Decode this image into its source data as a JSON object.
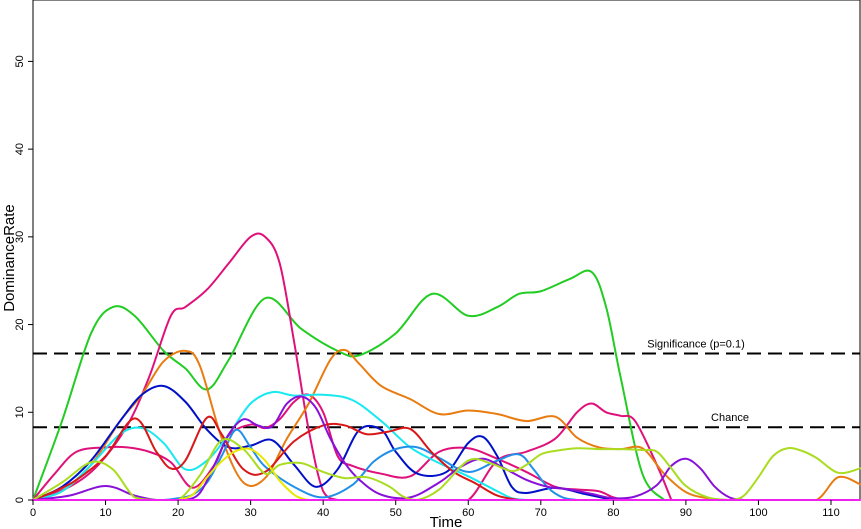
{
  "chart_data": {
    "type": "line",
    "title": "",
    "xlabel": "Time",
    "ylabel": "DominanceRate",
    "xlim": [
      0,
      114
    ],
    "ylim": [
      0,
      57
    ],
    "x_ticks": [
      0,
      10,
      20,
      30,
      40,
      50,
      60,
      70,
      80,
      90,
      100,
      110
    ],
    "y_ticks": [
      0,
      10,
      20,
      30,
      40,
      50
    ],
    "grid": false,
    "legend": "none",
    "reference_lines": [
      {
        "label": "Significance (p=0.1)",
        "y": 16.7,
        "style": "dashed"
      },
      {
        "label": "Chance",
        "y": 8.3,
        "style": "dashed"
      }
    ],
    "series": [
      {
        "color": "#22cc22",
        "x": [
          0,
          4,
          8,
          11,
          14,
          18,
          21,
          24,
          27,
          32,
          37,
          42,
          45,
          50,
          55,
          60,
          64,
          67,
          70,
          74,
          77,
          79,
          81,
          84,
          87
        ],
        "y": [
          0,
          9,
          19,
          22,
          21,
          17,
          15,
          12.6,
          16,
          23,
          19.5,
          17,
          16.5,
          19,
          23.5,
          21,
          22,
          23.5,
          23.8,
          25.2,
          26,
          22,
          14,
          3,
          0
        ]
      },
      {
        "color": "#e0107a",
        "x": [
          0,
          3,
          6,
          10,
          13,
          16,
          19,
          22,
          25,
          27,
          30,
          32,
          34,
          36,
          38,
          40,
          42,
          44,
          48,
          52,
          56,
          60,
          64,
          68,
          72,
          75,
          78,
          80,
          82,
          84,
          86
        ],
        "y": [
          0,
          3,
          5.5,
          6,
          6,
          5.5,
          4.3,
          1.4,
          4,
          7.4,
          8.6,
          8.2,
          9.2,
          11.2,
          12,
          10,
          5,
          3.9,
          3,
          2.7,
          5.5,
          5.9,
          4.7,
          3.2,
          1.5,
          1.2,
          1,
          0.3,
          0,
          0,
          0
        ]
      },
      {
        "color": "#e0107a",
        "x": [
          0,
          5,
          9,
          13,
          16,
          19,
          21,
          24,
          27,
          30,
          32,
          34,
          36,
          38,
          40,
          42,
          44,
          46,
          48,
          52,
          56,
          60,
          64,
          68,
          72,
          75,
          77,
          79,
          81,
          83,
          86,
          88
        ],
        "y": [
          0,
          1.5,
          4,
          8.5,
          14,
          21,
          22,
          24,
          27,
          30,
          30,
          27,
          18,
          8,
          1,
          0,
          0,
          0,
          0,
          0,
          0,
          0,
          4.5,
          5.5,
          7,
          10,
          11,
          10,
          9.6,
          9,
          4,
          0
        ]
      },
      {
        "color": "#e87c10",
        "x": [
          0,
          4,
          8,
          12,
          15,
          18,
          21,
          23,
          26,
          29,
          32,
          35,
          38,
          41,
          43,
          45,
          48,
          52,
          56,
          60,
          64,
          68,
          72,
          75,
          78,
          81,
          84,
          87,
          90,
          93,
          96,
          100,
          104,
          108,
          111,
          114
        ],
        "y": [
          0,
          1,
          4,
          9,
          12,
          15.8,
          17,
          15.3,
          7.1,
          2,
          2.5,
          7,
          11,
          16,
          17.1,
          15.5,
          13,
          11.5,
          9.8,
          10.2,
          9.8,
          9,
          9.5,
          7.1,
          6,
          5.8,
          5.9,
          3,
          0.9,
          0.2,
          0,
          0,
          0,
          0,
          2.6,
          1.8
        ]
      },
      {
        "color": "#0010c8",
        "x": [
          0,
          4,
          8,
          12,
          15,
          18,
          21,
          24,
          27,
          30,
          33,
          36,
          39,
          42,
          45,
          48,
          50,
          53,
          57,
          60,
          62,
          64,
          66,
          68,
          72,
          76,
          80
        ],
        "y": [
          0,
          1.5,
          4.5,
          9,
          12,
          13,
          11.2,
          8,
          6,
          6.2,
          6.8,
          4,
          1.5,
          3.5,
          8,
          8,
          5.5,
          3,
          3.2,
          6.5,
          7.2,
          5,
          1.5,
          0.8,
          1.4,
          0.7,
          0
        ]
      },
      {
        "color": "#18e8f0",
        "x": [
          0,
          4,
          8,
          12,
          15,
          18,
          21,
          24,
          27,
          30,
          33,
          36,
          40,
          44,
          48,
          52,
          56,
          60,
          64,
          66,
          68
        ],
        "y": [
          0,
          1,
          4,
          7.5,
          8.2,
          6.5,
          3.5,
          4.5,
          7.5,
          11,
          12.3,
          11.9,
          12,
          11.4,
          9,
          6,
          4.2,
          2.7,
          1,
          0.2,
          0
        ]
      },
      {
        "color": "#2090e8",
        "x": [
          0,
          8,
          12,
          16,
          18,
          20,
          22,
          24,
          26,
          28,
          30,
          32,
          36,
          40,
          44,
          47,
          50,
          53,
          56,
          60,
          64,
          67,
          69,
          71,
          73,
          75
        ],
        "y": [
          0,
          0,
          0,
          0,
          0,
          0.2,
          0.6,
          2,
          5,
          8,
          6,
          3.8,
          1.5,
          0.3,
          1.7,
          4.4,
          5.8,
          6,
          4.8,
          3.2,
          4.5,
          5.2,
          3.5,
          1.4,
          0.3,
          0
        ]
      },
      {
        "color": "#d81818",
        "x": [
          0,
          3,
          6,
          10,
          14,
          17,
          19,
          21,
          24,
          26,
          29,
          32,
          36,
          40,
          43,
          46,
          49,
          52,
          55,
          58,
          61,
          64,
          67
        ],
        "y": [
          0,
          1,
          2.3,
          5,
          9.3,
          5.5,
          3.6,
          4.5,
          9.4,
          7.5,
          3.5,
          3.2,
          6.7,
          8.5,
          8.5,
          7.5,
          7.8,
          8.1,
          5.4,
          3.2,
          1.9,
          0.5,
          0
        ]
      },
      {
        "color": "#8810d8",
        "x": [
          0,
          5,
          10,
          14,
          17,
          19,
          21,
          23,
          25,
          27,
          29,
          31,
          33,
          35,
          37,
          39,
          41,
          43,
          45,
          48,
          52,
          56,
          59,
          62,
          65,
          68,
          71,
          74,
          77,
          80,
          83,
          86,
          88,
          90,
          92,
          94,
          96,
          98,
          100
        ],
        "y": [
          0,
          0.5,
          1.6,
          0.5,
          0,
          0,
          0,
          0.8,
          4,
          7.5,
          9.2,
          8.5,
          8.4,
          11,
          11.8,
          10.5,
          7,
          4.2,
          2.3,
          0.6,
          0.3,
          2,
          3.8,
          4.7,
          3.6,
          2.3,
          1.5,
          1.2,
          0.7,
          0.2,
          0.4,
          1.7,
          3.9,
          4.7,
          3.6,
          1.5,
          0.3,
          0,
          0
        ]
      },
      {
        "color": "#aadc20",
        "x": [
          0,
          4,
          8,
          11,
          14,
          17,
          20,
          23,
          26,
          29,
          32,
          34,
          37,
          40,
          43,
          46,
          49,
          51,
          53,
          56,
          60,
          63,
          66,
          68,
          70,
          72,
          75,
          78,
          81,
          84,
          86,
          88,
          90,
          93,
          96,
          98,
          100,
          102,
          104,
          106,
          108,
          111,
          114
        ],
        "y": [
          0,
          2,
          4.3,
          3.5,
          0.3,
          0,
          0,
          2.8,
          6.8,
          5.8,
          3,
          4,
          4.2,
          3.2,
          2.5,
          2.6,
          1.6,
          0.4,
          0,
          1.2,
          4.5,
          4.2,
          3.3,
          4,
          5.2,
          5.6,
          5.9,
          5.8,
          5.8,
          5.7,
          5.5,
          3.6,
          1.6,
          0.3,
          0,
          0.5,
          2.6,
          5,
          5.9,
          5.6,
          4.8,
          3.1,
          3.6
        ]
      },
      {
        "color": "#e8e800",
        "x": [
          20,
          22,
          24,
          26,
          28,
          30,
          32,
          34,
          36,
          37,
          38,
          40
        ],
        "y": [
          0,
          0.6,
          2.6,
          4.4,
          5.6,
          5.8,
          4.5,
          2.2,
          0.6,
          0.2,
          0,
          0
        ]
      },
      {
        "color": "#f020f0",
        "x": [
          0,
          10,
          20,
          30,
          40,
          50,
          60,
          70,
          80,
          90,
          100,
          110,
          114
        ],
        "y": [
          0,
          0,
          0,
          0,
          0,
          0,
          0,
          0,
          0,
          0,
          0,
          0,
          0
        ]
      }
    ]
  }
}
